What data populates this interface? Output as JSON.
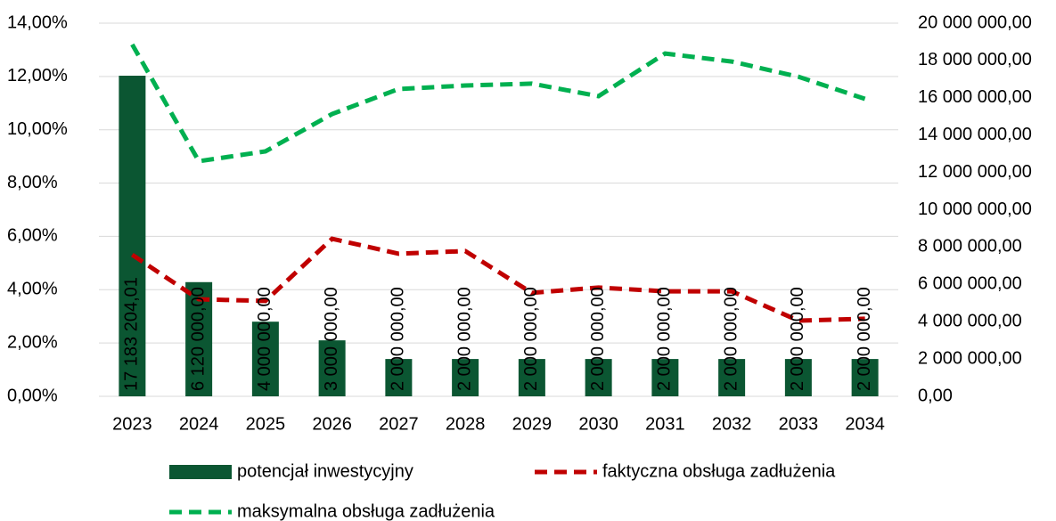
{
  "chart_data": {
    "type": "combo",
    "categories": [
      "2023",
      "2024",
      "2025",
      "2026",
      "2027",
      "2028",
      "2029",
      "2030",
      "2031",
      "2032",
      "2033",
      "2034"
    ],
    "series": [
      {
        "name": "potencjał inwestycyjny",
        "type": "bar",
        "axis": "y2",
        "color": "#0b5632",
        "values": [
          17183204.01,
          6120000,
          4000000,
          3000000,
          2000000,
          2000000,
          2000000,
          2000000,
          2000000,
          2000000,
          2000000,
          2000000
        ],
        "value_labels": [
          "17 183 204,01",
          "6 120 000,00",
          "4 000 000,00",
          "3 000 000,00",
          "2 000 000,00",
          "2 000 000,00",
          "2 000 000,00",
          "2 000 000,00",
          "2 000 000,00",
          "2 000 000,00",
          "2 000 000,00",
          "2 000 000,00"
        ]
      },
      {
        "name": "faktyczna obsługa zadłużenia",
        "type": "line",
        "axis": "y",
        "color": "#c00000",
        "values": [
          5.31,
          3.64,
          3.58,
          5.91,
          5.35,
          5.45,
          3.88,
          4.08,
          3.94,
          3.94,
          2.84,
          2.91
        ]
      },
      {
        "name": "maksymalna obsługa zadłużenia",
        "type": "line",
        "axis": "y",
        "color": "#00b050",
        "values": [
          13.2,
          8.82,
          9.19,
          10.59,
          11.53,
          11.66,
          11.73,
          11.26,
          12.86,
          12.56,
          11.99,
          11.16
        ]
      }
    ],
    "ylim": [
      0,
      14
    ],
    "yticks": [
      {
        "value": 0,
        "label": "0,00%"
      },
      {
        "value": 2,
        "label": "2,00%"
      },
      {
        "value": 4,
        "label": "4,00%"
      },
      {
        "value": 6,
        "label": "6,00%"
      },
      {
        "value": 8,
        "label": "8,00%"
      },
      {
        "value": 10,
        "label": "10,00%"
      },
      {
        "value": 12,
        "label": "12,00%"
      },
      {
        "value": 14,
        "label": "14,00%"
      }
    ],
    "y2lim": [
      0,
      20000000
    ],
    "y2ticks": [
      {
        "value": 0,
        "label": "0,00"
      },
      {
        "value": 2000000,
        "label": "2 000 000,00"
      },
      {
        "value": 4000000,
        "label": "4 000 000,00"
      },
      {
        "value": 6000000,
        "label": "6 000 000,00"
      },
      {
        "value": 8000000,
        "label": "8 000 000,00"
      },
      {
        "value": 10000000,
        "label": "10 000 000,00"
      },
      {
        "value": 12000000,
        "label": "12 000 000,00"
      },
      {
        "value": 14000000,
        "label": "14 000 000,00"
      },
      {
        "value": 16000000,
        "label": "16 000 000,00"
      },
      {
        "value": 18000000,
        "label": "18 000 000,00"
      },
      {
        "value": 20000000,
        "label": "20 000 000,00"
      }
    ],
    "grid": true,
    "legend": "bottom"
  }
}
